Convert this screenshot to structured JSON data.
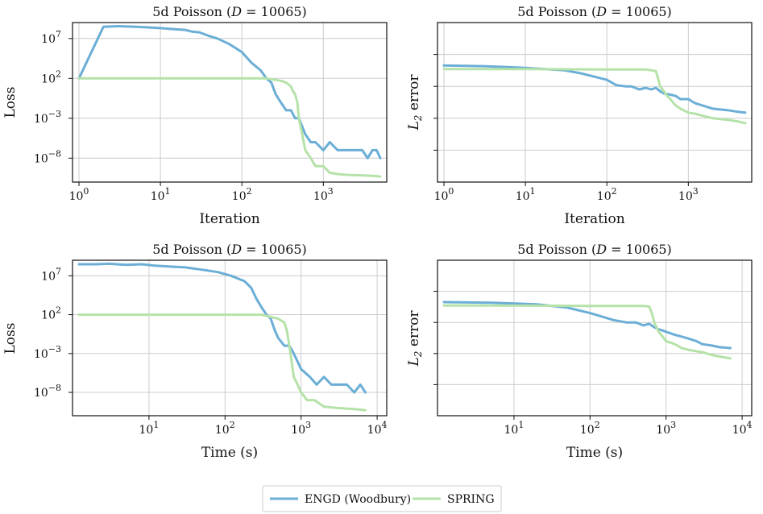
{
  "chart_data": [
    {
      "id": "tl",
      "type": "line",
      "title": "5d Poisson (D = 10065)",
      "title_parts": [
        "5d Poisson (",
        "D",
        " = 10065)"
      ],
      "xlabel": "Iteration",
      "ylabel": "Loss",
      "xscale": "log",
      "yscale": "log",
      "xlim": [
        1.0,
        5000.0
      ],
      "ylim": [
        1e-11,
        1000000000.0
      ],
      "xticks": [
        {
          "v": 1,
          "base": "10",
          "exp": "0"
        },
        {
          "v": 10,
          "base": "10",
          "exp": "1"
        },
        {
          "v": 100,
          "base": "10",
          "exp": "2"
        },
        {
          "v": 1000,
          "base": "10",
          "exp": "3"
        }
      ],
      "yticks": [
        {
          "v": 10000000.0,
          "base": "10",
          "exp": "7"
        },
        {
          "v": 100.0,
          "base": "10",
          "exp": "2"
        },
        {
          "v": 0.001,
          "base": "10",
          "exp": "−3"
        },
        {
          "v": 1e-08,
          "base": "10",
          "exp": "−8"
        }
      ],
      "grid": true,
      "series": [
        {
          "name": "ENGD (Woodbury)",
          "color": "#6baed6",
          "x": [
            1,
            2,
            3,
            5,
            7,
            10,
            15,
            20,
            25,
            30,
            40,
            50,
            70,
            100,
            130,
            170,
            200,
            230,
            260,
            300,
            350,
            400,
            450,
            500,
            600,
            700,
            800,
            1000,
            1200,
            1500,
            2000,
            2500,
            3000,
            3500,
            4000,
            4500,
            5000
          ],
          "y": [
            100.0,
            300000000.0,
            350000000.0,
            300000000.0,
            250000000.0,
            200000000.0,
            150000000.0,
            120000000.0,
            70000000.0,
            60000000.0,
            20000000.0,
            10000000.0,
            2000000.0,
            200000.0,
            10000.0,
            1000.0,
            100.0,
            30.0,
            1,
            0.1,
            0.01,
            0.01,
            0.001,
            0.001,
            1e-05,
            1e-06,
            1e-06,
            1e-07,
            1e-06,
            1e-07,
            1e-07,
            1e-07,
            1e-07,
            1e-08,
            1e-07,
            1e-07,
            1e-08
          ]
        },
        {
          "name": "SPRING",
          "color": "#b5e2a8",
          "x": [
            1,
            10,
            100,
            200,
            300,
            350,
            400,
            420,
            450,
            480,
            500,
            550,
            600,
            700,
            800,
            1000,
            1200,
            1500,
            2000,
            3000,
            4000,
            5000
          ],
          "y": [
            100.0,
            100.0,
            100.0,
            100.0,
            50.0,
            30.0,
            10.0,
            3,
            1,
            0.1,
            0.001,
            1e-05,
            1e-07,
            1e-08,
            1e-09,
            1e-09,
            1.5e-10,
            1e-10,
            8e-11,
            7e-11,
            6e-11,
            5e-11
          ]
        }
      ]
    },
    {
      "id": "tr",
      "type": "line",
      "title": "5d Poisson (D = 10065)",
      "title_parts": [
        "5d Poisson (",
        "D",
        " = 10065)"
      ],
      "xlabel": "Iteration",
      "ylabel": "L2 error",
      "ylabel_parts": [
        "L",
        "2",
        " error"
      ],
      "xscale": "log",
      "yscale": "log",
      "xlim": [
        1.0,
        5000.0
      ],
      "ylim": [
        0.0001,
        10.0
      ],
      "xticks": [
        {
          "v": 1,
          "base": "10",
          "exp": "0"
        },
        {
          "v": 10,
          "base": "10",
          "exp": "1"
        },
        {
          "v": 100,
          "base": "10",
          "exp": "2"
        },
        {
          "v": 1000,
          "base": "10",
          "exp": "3"
        }
      ],
      "yticks": [
        {
          "v": 1.0,
          "base": "",
          "exp": ""
        },
        {
          "v": 0.1,
          "base": "",
          "exp": ""
        },
        {
          "v": 0.01,
          "base": "",
          "exp": ""
        },
        {
          "v": 0.001,
          "base": "",
          "exp": ""
        }
      ],
      "grid": true,
      "series": [
        {
          "name": "ENGD (Woodbury)",
          "color": "#6baed6",
          "x": [
            1,
            3,
            10,
            30,
            50,
            100,
            130,
            170,
            200,
            250,
            300,
            350,
            400,
            450,
            500,
            600,
            700,
            800,
            1000,
            1200,
            1500,
            2000,
            3000,
            4000,
            5000
          ],
          "y": [
            0.45,
            0.43,
            0.38,
            0.32,
            0.25,
            0.16,
            0.11,
            0.1,
            0.1,
            0.08,
            0.09,
            0.08,
            0.09,
            0.07,
            0.06,
            0.055,
            0.05,
            0.04,
            0.04,
            0.03,
            0.025,
            0.02,
            0.018,
            0.016,
            0.015
          ]
        },
        {
          "name": "SPRING",
          "color": "#b5e2a8",
          "x": [
            1,
            10,
            100,
            200,
            300,
            350,
            400,
            420,
            450,
            500,
            550,
            600,
            700,
            800,
            1000,
            1200,
            1500,
            2000,
            3000,
            4000,
            5000
          ],
          "y": [
            0.35,
            0.35,
            0.34,
            0.34,
            0.34,
            0.32,
            0.3,
            0.2,
            0.1,
            0.07,
            0.05,
            0.04,
            0.025,
            0.02,
            0.015,
            0.014,
            0.012,
            0.01,
            0.009,
            0.008,
            0.007
          ]
        }
      ]
    },
    {
      "id": "bl",
      "type": "line",
      "title": "5d Poisson (D = 10065)",
      "title_parts": [
        "5d Poisson (",
        "D",
        " = 10065)"
      ],
      "xlabel": "Time (s)",
      "ylabel": "Loss",
      "xscale": "log",
      "yscale": "log",
      "xlim": [
        1.2,
        11000.0
      ],
      "ylim": [
        1e-11,
        1000000000.0
      ],
      "xticks": [
        {
          "v": 10,
          "base": "10",
          "exp": "1"
        },
        {
          "v": 100,
          "base": "10",
          "exp": "2"
        },
        {
          "v": 1000,
          "base": "10",
          "exp": "3"
        },
        {
          "v": 10000,
          "base": "10",
          "exp": "4"
        }
      ],
      "yticks": [
        {
          "v": 10000000.0,
          "base": "10",
          "exp": "7"
        },
        {
          "v": 100.0,
          "base": "10",
          "exp": "2"
        },
        {
          "v": 0.001,
          "base": "10",
          "exp": "−3"
        },
        {
          "v": 1e-08,
          "base": "10",
          "exp": "−8"
        }
      ],
      "grid": true,
      "series": [
        {
          "name": "ENGD (Woodbury)",
          "color": "#6baed6",
          "x": [
            1.2,
            2,
            3,
            5,
            8,
            12,
            20,
            30,
            50,
            80,
            120,
            180,
            220,
            260,
            300,
            350,
            400,
            450,
            500,
            600,
            700,
            800,
            1000,
            1300,
            1600,
            2000,
            2500,
            3000,
            4000,
            5000,
            6000,
            7000
          ],
          "y": [
            300000000.0,
            300000000.0,
            350000000.0,
            250000000.0,
            300000000.0,
            200000000.0,
            150000000.0,
            120000000.0,
            60000000.0,
            30000000.0,
            10000000.0,
            2000000.0,
            300000.0,
            10000.0,
            1000.0,
            100.0,
            30.0,
            1,
            0.1,
            0.01,
            0.01,
            0.001,
            1e-05,
            1e-06,
            1e-07,
            1e-06,
            1e-07,
            1e-07,
            1e-07,
            1e-08,
            1e-07,
            1e-08
          ]
        },
        {
          "name": "SPRING",
          "color": "#b5e2a8",
          "x": [
            1.2,
            10,
            100,
            300,
            500,
            600,
            650,
            700,
            750,
            800,
            900,
            1000,
            1200,
            1500,
            2000,
            3000,
            4000,
            5000,
            6000,
            7000
          ],
          "y": [
            100.0,
            100.0,
            100.0,
            100.0,
            30.0,
            10.0,
            1,
            0.01,
            0.0001,
            1e-06,
            1e-07,
            1e-08,
            1e-09,
            1e-09,
            1.5e-10,
            1e-10,
            8e-11,
            7e-11,
            6e-11,
            5e-11
          ]
        }
      ]
    },
    {
      "id": "br",
      "type": "line",
      "title": "5d Poisson (D = 10065)",
      "title_parts": [
        "5d Poisson (",
        "D",
        " = 10065)"
      ],
      "xlabel": "Time (s)",
      "ylabel": "L2 error",
      "ylabel_parts": [
        "L",
        "2",
        " error"
      ],
      "xscale": "log",
      "yscale": "log",
      "xlim": [
        1.2,
        11000.0
      ],
      "ylim": [
        0.0001,
        10.0
      ],
      "xticks": [
        {
          "v": 10,
          "base": "10",
          "exp": "1"
        },
        {
          "v": 100,
          "base": "10",
          "exp": "2"
        },
        {
          "v": 1000,
          "base": "10",
          "exp": "3"
        },
        {
          "v": 10000,
          "base": "10",
          "exp": "4"
        }
      ],
      "yticks": [
        {
          "v": 1.0,
          "base": "",
          "exp": ""
        },
        {
          "v": 0.1,
          "base": "",
          "exp": ""
        },
        {
          "v": 0.01,
          "base": "",
          "exp": ""
        },
        {
          "v": 0.001,
          "base": "",
          "exp": ""
        }
      ],
      "grid": true,
      "series": [
        {
          "name": "ENGD (Woodbury)",
          "color": "#6baed6",
          "x": [
            1.2,
            5,
            20,
            50,
            100,
            200,
            300,
            400,
            500,
            600,
            700,
            800,
            900,
            1000,
            1300,
            1600,
            2000,
            2500,
            3000,
            4000,
            5000,
            7000
          ],
          "y": [
            0.45,
            0.43,
            0.38,
            0.3,
            0.2,
            0.12,
            0.1,
            0.1,
            0.08,
            0.09,
            0.07,
            0.06,
            0.055,
            0.05,
            0.04,
            0.035,
            0.03,
            0.025,
            0.02,
            0.018,
            0.016,
            0.015
          ]
        },
        {
          "name": "SPRING",
          "color": "#b5e2a8",
          "x": [
            1.2,
            10,
            100,
            300,
            500,
            600,
            650,
            700,
            750,
            800,
            900,
            1000,
            1300,
            1600,
            2000,
            3000,
            4000,
            5000,
            7000
          ],
          "y": [
            0.35,
            0.35,
            0.34,
            0.34,
            0.34,
            0.32,
            0.2,
            0.1,
            0.07,
            0.05,
            0.035,
            0.025,
            0.02,
            0.015,
            0.013,
            0.011,
            0.009,
            0.008,
            0.007
          ]
        }
      ]
    }
  ],
  "legend": {
    "placement": "bottom-center",
    "entries": [
      {
        "label": "ENGD (Woodbury)",
        "color": "#6baed6"
      },
      {
        "label": "SPRING",
        "color": "#b5e2a8"
      }
    ]
  }
}
